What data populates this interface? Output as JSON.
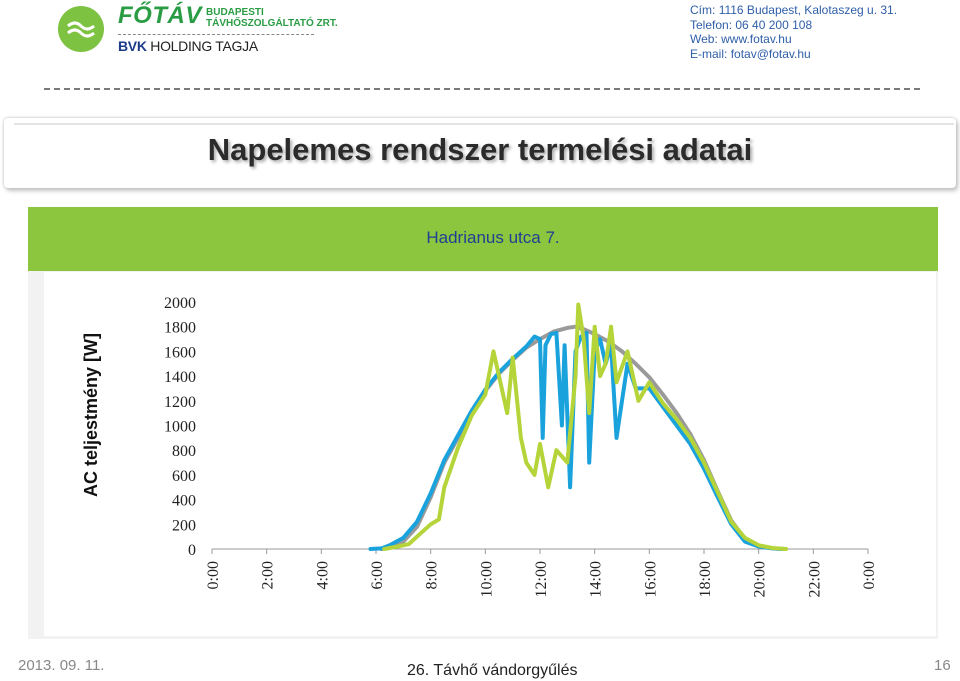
{
  "header": {
    "brand": "FŐTÁV",
    "brand_sub1": "BUDAPESTI",
    "brand_sub2": "TÁVHŐSZOLGÁLTATÓ ZRT.",
    "holding_bold": "BVK",
    "holding_rest": "HOLDING TAGJA",
    "contact": {
      "address_label": "Cím:",
      "address": "1116 Budapest, Kalotaszeg u. 31.",
      "phone_label": "Telefon:",
      "phone": "06 40 200 108",
      "web_label": "Web:",
      "web": "www.fotav.hu",
      "email_label": "E-mail:",
      "email": "fotav@fotav.hu"
    }
  },
  "slide_title": "Napelemes rendszer termelési adatai",
  "footer": {
    "date": "2013. 09. 11.",
    "event": "26. Távhő vándorgyűlés",
    "page": "16"
  },
  "colors": {
    "accent_green": "#8cc63e",
    "title_blue": "#1f3f94",
    "series_blue": "#1aa2dc",
    "series_lime": "#b5d43a",
    "series_gray": "#9a9a9a"
  },
  "chart_data": {
    "type": "line",
    "title": "Hadrianus utca 7.",
    "ylabel": "AC  teljestmény [W]",
    "xlabel": "",
    "ylim": [
      0,
      2000
    ],
    "y_ticks": [
      "2000",
      "1800",
      "1600",
      "1400",
      "1200",
      "1000",
      "800",
      "600",
      "400",
      "200",
      "0"
    ],
    "x_ticks": [
      "0:00",
      "2:00",
      "4:00",
      "6:00",
      "8:00",
      "10:00",
      "12:00",
      "14:00",
      "16:00",
      "18:00",
      "20:00",
      "22:00",
      "0:00"
    ],
    "xlim_hours": [
      0,
      24
    ],
    "series": [
      {
        "color": "#9a9a9a",
        "points": [
          [
            6.2,
            0
          ],
          [
            6.5,
            15
          ],
          [
            7,
            60
          ],
          [
            7.5,
            180
          ],
          [
            8,
            420
          ],
          [
            8.5,
            700
          ],
          [
            9,
            900
          ],
          [
            9.5,
            1100
          ],
          [
            10,
            1280
          ],
          [
            10.5,
            1420
          ],
          [
            11,
            1530
          ],
          [
            11.5,
            1630
          ],
          [
            12,
            1700
          ],
          [
            12.5,
            1760
          ],
          [
            13,
            1790
          ],
          [
            13.3,
            1800
          ],
          [
            13.6,
            1780
          ],
          [
            14,
            1740
          ],
          [
            14.5,
            1680
          ],
          [
            15,
            1600
          ],
          [
            15.5,
            1500
          ],
          [
            16,
            1390
          ],
          [
            16.5,
            1250
          ],
          [
            17,
            1100
          ],
          [
            17.5,
            930
          ],
          [
            18,
            720
          ],
          [
            18.5,
            470
          ],
          [
            19,
            230
          ],
          [
            19.5,
            80
          ],
          [
            20,
            25
          ],
          [
            20.5,
            5
          ],
          [
            21,
            0
          ]
        ]
      },
      {
        "color": "#1aa2dc",
        "points": [
          [
            5.8,
            0
          ],
          [
            6.2,
            5
          ],
          [
            6.5,
            30
          ],
          [
            7,
            90
          ],
          [
            7.5,
            220
          ],
          [
            8,
            450
          ],
          [
            8.5,
            720
          ],
          [
            9,
            920
          ],
          [
            9.5,
            1120
          ],
          [
            10,
            1290
          ],
          [
            10.5,
            1430
          ],
          [
            11,
            1540
          ],
          [
            11.5,
            1640
          ],
          [
            11.8,
            1720
          ],
          [
            12,
            1700
          ],
          [
            12.1,
            900
          ],
          [
            12.2,
            1650
          ],
          [
            12.4,
            1740
          ],
          [
            12.6,
            1750
          ],
          [
            12.8,
            1000
          ],
          [
            12.9,
            1650
          ],
          [
            13.1,
            500
          ],
          [
            13.3,
            1600
          ],
          [
            13.5,
            1720
          ],
          [
            13.7,
            1750
          ],
          [
            13.8,
            700
          ],
          [
            14,
            1600
          ],
          [
            14.2,
            1700
          ],
          [
            14.4,
            1500
          ],
          [
            14.6,
            1650
          ],
          [
            14.8,
            900
          ],
          [
            15,
            1200
          ],
          [
            15.2,
            1500
          ],
          [
            15.5,
            1300
          ],
          [
            16,
            1300
          ],
          [
            16.5,
            1150
          ],
          [
            17,
            1000
          ],
          [
            17.5,
            850
          ],
          [
            18,
            650
          ],
          [
            18.5,
            420
          ],
          [
            19,
            200
          ],
          [
            19.5,
            60
          ],
          [
            20,
            20
          ],
          [
            20.5,
            5
          ],
          [
            20.8,
            0
          ]
        ]
      },
      {
        "color": "#b5d43a",
        "points": [
          [
            6.3,
            0
          ],
          [
            6.8,
            20
          ],
          [
            7.2,
            40
          ],
          [
            7.6,
            120
          ],
          [
            8,
            200
          ],
          [
            8.3,
            240
          ],
          [
            8.5,
            500
          ],
          [
            9,
            820
          ],
          [
            9.5,
            1080
          ],
          [
            10,
            1250
          ],
          [
            10.3,
            1600
          ],
          [
            10.5,
            1400
          ],
          [
            10.8,
            1100
          ],
          [
            11,
            1550
          ],
          [
            11.3,
            900
          ],
          [
            11.5,
            700
          ],
          [
            11.8,
            600
          ],
          [
            12,
            850
          ],
          [
            12.3,
            500
          ],
          [
            12.6,
            800
          ],
          [
            13,
            700
          ],
          [
            13.3,
            1400
          ],
          [
            13.4,
            1980
          ],
          [
            13.6,
            1700
          ],
          [
            13.8,
            1100
          ],
          [
            14,
            1800
          ],
          [
            14.2,
            1400
          ],
          [
            14.4,
            1500
          ],
          [
            14.6,
            1800
          ],
          [
            14.8,
            1350
          ],
          [
            15.2,
            1600
          ],
          [
            15.6,
            1200
          ],
          [
            16,
            1350
          ],
          [
            16.5,
            1180
          ],
          [
            17,
            1050
          ],
          [
            17.5,
            900
          ],
          [
            18,
            700
          ],
          [
            18.5,
            460
          ],
          [
            19,
            220
          ],
          [
            19.5,
            90
          ],
          [
            20,
            30
          ],
          [
            20.5,
            8
          ],
          [
            21,
            0
          ]
        ]
      }
    ]
  }
}
